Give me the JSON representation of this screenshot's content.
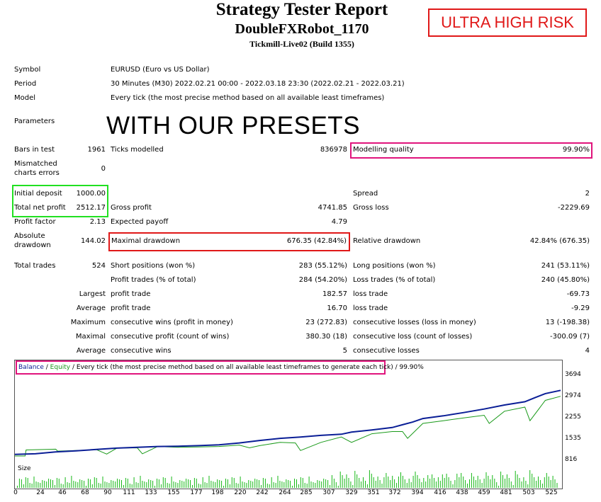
{
  "header": {
    "title": "Strategy Tester Report",
    "robot": "DoubleFXRobot_1170",
    "server": "Tickmill-Live02 (Build 1355)",
    "risk_badge": "ULTRA HIGH RISK",
    "presets_caption": "WITH OUR PRESETS"
  },
  "info": {
    "symbol_label": "Symbol",
    "symbol_value": "EURUSD (Euro vs US Dollar)",
    "period_label": "Period",
    "period_value": "30 Minutes (M30) 2022.02.21 00:00 - 2022.03.18 23:30 (2022.02.21 - 2022.03.21)",
    "model_label": "Model",
    "model_value": "Every tick (the most precise method based on all available least timeframes)",
    "parameters_label": "Parameters"
  },
  "stats": {
    "bars_label": "Bars in test",
    "bars_value": "1961",
    "ticks_label": "Ticks modelled",
    "ticks_value": "836978",
    "quality_label": "Modelling quality",
    "quality_value": "99.90%",
    "mismatch_label_1": "Mismatched",
    "mismatch_label_2": "charts errors",
    "mismatch_value": "0",
    "initial_label": "Initial deposit",
    "initial_value": "1000.00",
    "spread_label": "Spread",
    "spread_value": "2",
    "netprofit_label": "Total net profit",
    "netprofit_value": "2512.17",
    "grossprofit_label": "Gross profit",
    "grossprofit_value": "4741.85",
    "grossloss_label": "Gross loss",
    "grossloss_value": "-2229.69",
    "pf_label": "Profit factor",
    "pf_value": "2.13",
    "payoff_label": "Expected payoff",
    "payoff_value": "4.79",
    "absdd_label_1": "Absolute",
    "absdd_label_2": "drawdown",
    "absdd_value": "144.02",
    "maxdd_label": "Maximal drawdown",
    "maxdd_value": "676.35 (42.84%)",
    "reldd_label": "Relative drawdown",
    "reldd_value": "42.84% (676.35)",
    "trades_label": "Total trades",
    "trades_value": "524",
    "short_label": "Short positions (won %)",
    "short_value": "283 (55.12%)",
    "long_label": "Long positions (won %)",
    "long_value": "241 (53.11%)",
    "profittrades_label": "Profit trades (% of total)",
    "profittrades_value": "284 (54.20%)",
    "losstrades_label": "Loss trades (% of total)",
    "losstrades_value": "240 (45.80%)",
    "largest_label": "Largest",
    "largest_profit_label": "profit trade",
    "largest_profit_value": "182.57",
    "largest_loss_label": "loss trade",
    "largest_loss_value": "-69.73",
    "average_label": "Average",
    "average_profit_label": "profit trade",
    "average_profit_value": "16.70",
    "average_loss_label": "loss trade",
    "average_loss_value": "-9.29",
    "maximum_label": "Maximum",
    "max_cons_wins_label": "consecutive wins (profit in money)",
    "max_cons_wins_value": "23 (272.83)",
    "max_cons_losses_label": "consecutive losses (loss in money)",
    "max_cons_losses_value": "13 (-198.38)",
    "maximal_label": "Maximal",
    "maximal_profit_label": "consecutive profit (count of wins)",
    "maximal_profit_value": "380.30 (18)",
    "maximal_loss_label": "consecutive loss (count of losses)",
    "maximal_loss_value": "-300.09 (7)",
    "average2_label": "Average",
    "avg_cons_wins_label": "consecutive wins",
    "avg_cons_wins_value": "5",
    "avg_cons_losses_label": "consecutive losses",
    "avg_cons_losses_value": "4"
  },
  "colors": {
    "balance": "#0a1e96",
    "equity": "#1a9a1a",
    "volume": "#17b817",
    "red": "#e01818",
    "green": "#21e021",
    "pink": "#e0147c"
  },
  "chart_data": {
    "type": "line",
    "legend": {
      "balance": "Balance",
      "sep1": " / ",
      "equity": "Equity",
      "rest": " / Every tick (the most precise method based on all available least timeframes to generate each tick) / 99.90%"
    },
    "ylabels": [
      "3694",
      "2974",
      "2255",
      "1535",
      "816"
    ],
    "ylim": [
      816,
      3950
    ],
    "xlabels": [
      "0",
      "24",
      "46",
      "68",
      "90",
      "111",
      "133",
      "155",
      "177",
      "198",
      "220",
      "242",
      "264",
      "285",
      "307",
      "329",
      "351",
      "372",
      "394",
      "416",
      "438",
      "459",
      "481",
      "503",
      "525"
    ],
    "xlim": [
      0,
      535
    ],
    "size_label": "Size",
    "series": [
      {
        "name": "Balance",
        "points": [
          [
            0,
            1060
          ],
          [
            20,
            1080
          ],
          [
            40,
            1150
          ],
          [
            60,
            1190
          ],
          [
            80,
            1240
          ],
          [
            100,
            1290
          ],
          [
            120,
            1320
          ],
          [
            140,
            1350
          ],
          [
            160,
            1360
          ],
          [
            180,
            1380
          ],
          [
            200,
            1410
          ],
          [
            220,
            1480
          ],
          [
            240,
            1570
          ],
          [
            260,
            1650
          ],
          [
            280,
            1700
          ],
          [
            300,
            1760
          ],
          [
            320,
            1800
          ],
          [
            330,
            1880
          ],
          [
            350,
            1960
          ],
          [
            370,
            2050
          ],
          [
            380,
            2150
          ],
          [
            390,
            2250
          ],
          [
            400,
            2380
          ],
          [
            420,
            2480
          ],
          [
            440,
            2600
          ],
          [
            460,
            2730
          ],
          [
            480,
            2880
          ],
          [
            500,
            3000
          ],
          [
            510,
            3150
          ],
          [
            520,
            3300
          ],
          [
            535,
            3420
          ]
        ]
      },
      {
        "name": "Equity",
        "points": [
          [
            0,
            1000
          ],
          [
            10,
            1000
          ],
          [
            11,
            1220
          ],
          [
            40,
            1250
          ],
          [
            42,
            1180
          ],
          [
            60,
            1200
          ],
          [
            80,
            1230
          ],
          [
            90,
            1070
          ],
          [
            100,
            1290
          ],
          [
            120,
            1300
          ],
          [
            125,
            1080
          ],
          [
            140,
            1350
          ],
          [
            160,
            1320
          ],
          [
            180,
            1330
          ],
          [
            200,
            1350
          ],
          [
            220,
            1400
          ],
          [
            230,
            1300
          ],
          [
            240,
            1380
          ],
          [
            260,
            1500
          ],
          [
            275,
            1480
          ],
          [
            280,
            1200
          ],
          [
            300,
            1500
          ],
          [
            320,
            1700
          ],
          [
            330,
            1500
          ],
          [
            350,
            1820
          ],
          [
            370,
            1900
          ],
          [
            380,
            1900
          ],
          [
            385,
            1650
          ],
          [
            400,
            2200
          ],
          [
            420,
            2300
          ],
          [
            440,
            2400
          ],
          [
            460,
            2500
          ],
          [
            465,
            2200
          ],
          [
            480,
            2650
          ],
          [
            500,
            2800
          ],
          [
            505,
            2300
          ],
          [
            520,
            3050
          ],
          [
            535,
            3200
          ]
        ]
      }
    ]
  }
}
